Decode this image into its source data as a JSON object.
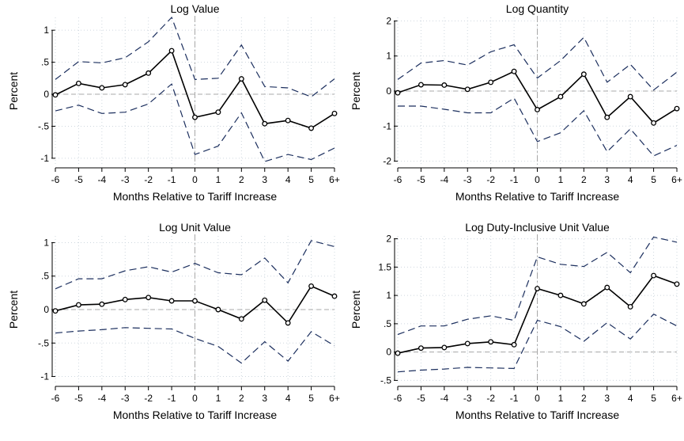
{
  "chart_data": [
    {
      "type": "line",
      "title": "Log Value",
      "xlabel": "Months Relative to Tariff Increase",
      "ylabel": "Percent",
      "categories": [
        "-6",
        "-5",
        "-4",
        "-3",
        "-2",
        "-1",
        "0",
        "1",
        "2",
        "3",
        "4",
        "5",
        "6+"
      ],
      "ylim": [
        -1.1,
        1.2
      ],
      "yticks": [
        1,
        0.5,
        0,
        -0.5,
        -1
      ],
      "yticklabels": [
        "1",
        ".5",
        "0",
        "-.5",
        "-1"
      ],
      "grid": true,
      "series": [
        {
          "role": "estimate",
          "values": [
            -0.01,
            0.17,
            0.1,
            0.15,
            0.33,
            0.68,
            -0.36,
            -0.28,
            0.24,
            -0.46,
            -0.41,
            -0.53,
            -0.3
          ]
        },
        {
          "role": "upper_ci",
          "values": [
            0.23,
            0.51,
            0.49,
            0.57,
            0.82,
            1.2,
            0.23,
            0.25,
            0.77,
            0.12,
            0.1,
            -0.04,
            0.24
          ]
        },
        {
          "role": "lower_ci",
          "values": [
            -0.26,
            -0.17,
            -0.3,
            -0.28,
            -0.15,
            0.16,
            -0.94,
            -0.81,
            -0.29,
            -1.05,
            -0.94,
            -1.02,
            -0.84
          ]
        }
      ]
    },
    {
      "type": "line",
      "title": "Log Quantity",
      "xlabel": "Months Relative to Tariff Increase",
      "ylabel": "Percent",
      "categories": [
        "-6",
        "-5",
        "-4",
        "-3",
        "-2",
        "-1",
        "0",
        "1",
        "2",
        "3",
        "4",
        "5",
        "6+"
      ],
      "ylim": [
        -2.1,
        2.1
      ],
      "yticks": [
        2,
        1,
        0,
        -1,
        -2
      ],
      "yticklabels": [
        "2",
        "1",
        "0",
        "-1",
        "-2"
      ],
      "grid": true,
      "series": [
        {
          "role": "estimate",
          "values": [
            -0.05,
            0.18,
            0.17,
            0.05,
            0.25,
            0.56,
            -0.53,
            -0.16,
            0.48,
            -0.75,
            -0.16,
            -0.91,
            -0.5
          ]
        },
        {
          "role": "upper_ci",
          "values": [
            0.33,
            0.8,
            0.87,
            0.74,
            1.12,
            1.32,
            0.37,
            0.87,
            1.53,
            0.25,
            0.76,
            0.03,
            0.54
          ]
        },
        {
          "role": "lower_ci",
          "values": [
            -0.43,
            -0.43,
            -0.52,
            -0.62,
            -0.62,
            -0.2,
            -1.44,
            -1.19,
            -0.56,
            -1.73,
            -1.08,
            -1.85,
            -1.55
          ]
        }
      ]
    },
    {
      "type": "line",
      "title": "Log Unit Value",
      "xlabel": "Months Relative to Tariff Increase",
      "ylabel": "Percent",
      "categories": [
        "-6",
        "-5",
        "-4",
        "-3",
        "-2",
        "-1",
        "0",
        "1",
        "2",
        "3",
        "4",
        "5",
        "6+"
      ],
      "ylim": [
        -1.1,
        1.1
      ],
      "yticks": [
        1,
        0.5,
        0,
        -0.5,
        -1
      ],
      "yticklabels": [
        "1",
        ".5",
        "0",
        "-.5",
        "-1"
      ],
      "grid": true,
      "series": [
        {
          "role": "estimate",
          "values": [
            -0.02,
            0.07,
            0.08,
            0.15,
            0.18,
            0.13,
            0.13,
            0.0,
            -0.14,
            0.14,
            -0.2,
            0.35,
            0.2
          ]
        },
        {
          "role": "upper_ci",
          "values": [
            0.31,
            0.46,
            0.46,
            0.58,
            0.64,
            0.56,
            0.69,
            0.55,
            0.52,
            0.77,
            0.4,
            1.03,
            0.94
          ]
        },
        {
          "role": "lower_ci",
          "values": [
            -0.35,
            -0.32,
            -0.3,
            -0.27,
            -0.28,
            -0.29,
            -0.43,
            -0.55,
            -0.8,
            -0.48,
            -0.77,
            -0.33,
            -0.54
          ]
        }
      ]
    },
    {
      "type": "line",
      "title": "Log Duty-Inclusive Unit Value",
      "xlabel": "Months Relative to Tariff Increase",
      "ylabel": "Percent",
      "categories": [
        "-6",
        "-5",
        "-4",
        "-3",
        "-2",
        "-1",
        "0",
        "1",
        "2",
        "3",
        "4",
        "5",
        "6+"
      ],
      "ylim": [
        -0.55,
        2.05
      ],
      "yticks": [
        2,
        1.5,
        1,
        0.5,
        0,
        -0.5
      ],
      "yticklabels": [
        "2",
        "1.5",
        "1",
        ".5",
        "0",
        "-.5"
      ],
      "grid": true,
      "series": [
        {
          "role": "estimate",
          "values": [
            -0.02,
            0.07,
            0.08,
            0.15,
            0.18,
            0.13,
            1.12,
            1.0,
            0.85,
            1.14,
            0.8,
            1.35,
            1.2
          ]
        },
        {
          "role": "upper_ci",
          "values": [
            0.31,
            0.46,
            0.46,
            0.58,
            0.64,
            0.56,
            1.68,
            1.55,
            1.51,
            1.76,
            1.4,
            2.03,
            1.94
          ]
        },
        {
          "role": "lower_ci",
          "values": [
            -0.35,
            -0.32,
            -0.3,
            -0.27,
            -0.28,
            -0.29,
            0.56,
            0.45,
            0.19,
            0.52,
            0.23,
            0.67,
            0.46
          ]
        }
      ]
    }
  ]
}
